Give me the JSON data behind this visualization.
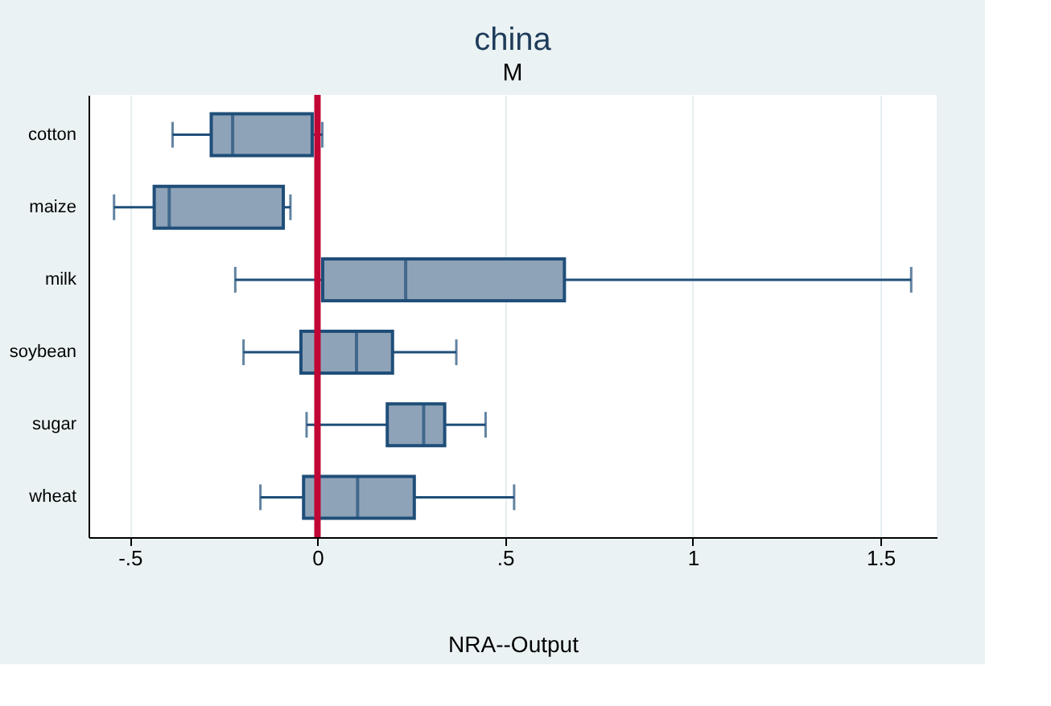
{
  "chart_data": {
    "type": "box",
    "orientation": "horizontal",
    "title": "china",
    "subtitle": "M",
    "xlabel": "NRA--Output",
    "categories": [
      "cotton",
      "maize",
      "milk",
      "soybean",
      "sugar",
      "wheat"
    ],
    "series": [
      {
        "color": "#8fa3b8",
        "boxes": [
          {
            "low": -0.386,
            "q1": -0.283,
            "median": -0.226,
            "q3": -0.014,
            "high": 0.013
          },
          {
            "low": -0.542,
            "q1": -0.435,
            "median": -0.395,
            "q3": -0.091,
            "high": -0.072
          },
          {
            "low": -0.219,
            "q1": 0.014,
            "median": 0.235,
            "q3": 0.658,
            "high": 1.582
          },
          {
            "low": -0.197,
            "q1": -0.044,
            "median": 0.104,
            "q3": 0.2,
            "high": 0.37
          },
          {
            "low": -0.029,
            "q1": 0.186,
            "median": 0.283,
            "q3": 0.339,
            "high": 0.448
          },
          {
            "low": -0.152,
            "q1": -0.037,
            "median": 0.107,
            "q3": 0.258,
            "high": 0.524
          }
        ]
      }
    ],
    "xlim": [
      -0.61,
      1.65
    ],
    "xticks": [
      {
        "value": -0.5,
        "label": "-.5"
      },
      0,
      {
        "value": 0.5,
        "label": ".5"
      },
      1,
      1.5
    ],
    "ref_lines": [
      {
        "axis": "x",
        "value": 0,
        "color": "#c10534"
      }
    ],
    "grid": "x"
  }
}
